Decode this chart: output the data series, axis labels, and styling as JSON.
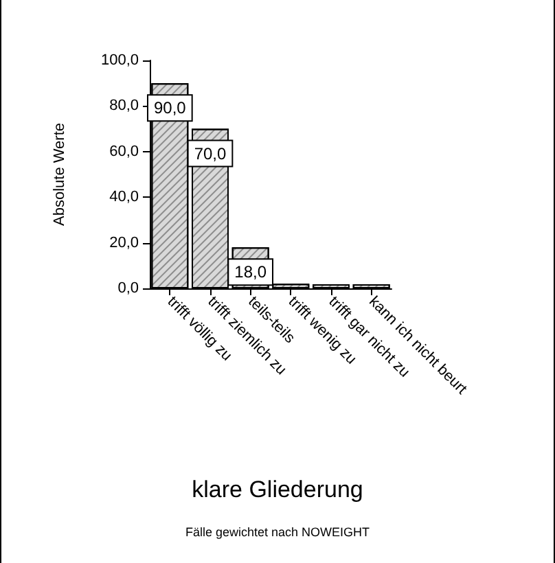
{
  "chart_data": {
    "type": "bar",
    "title": "klare Gliederung",
    "ylabel": "Absolute Werte",
    "annotations": [
      "Fälle gewichtet nach NOWEIGHT"
    ],
    "categories": [
      "trifft völlig zu",
      "trifft ziemlich zu",
      "teils-teils",
      "trifft wenig zu",
      "trifft gar nicht zu",
      "kann ich nicht beurt"
    ],
    "values": [
      90,
      70,
      18,
      2,
      0,
      0
    ],
    "color": "#d9d9d9",
    "value_labels": [
      "90,0",
      "70,0",
      "18,0",
      null,
      null,
      null
    ],
    "ylim": [
      0,
      100
    ],
    "yticks": [
      {
        "value": 0,
        "label": "0,0"
      },
      {
        "value": 20,
        "label": "20,0"
      },
      {
        "value": 40,
        "label": "40,0"
      },
      {
        "value": 60,
        "label": "60,0"
      },
      {
        "value": 80,
        "label": "80,0"
      },
      {
        "value": 100,
        "label": "100,0"
      }
    ],
    "grid": false
  }
}
